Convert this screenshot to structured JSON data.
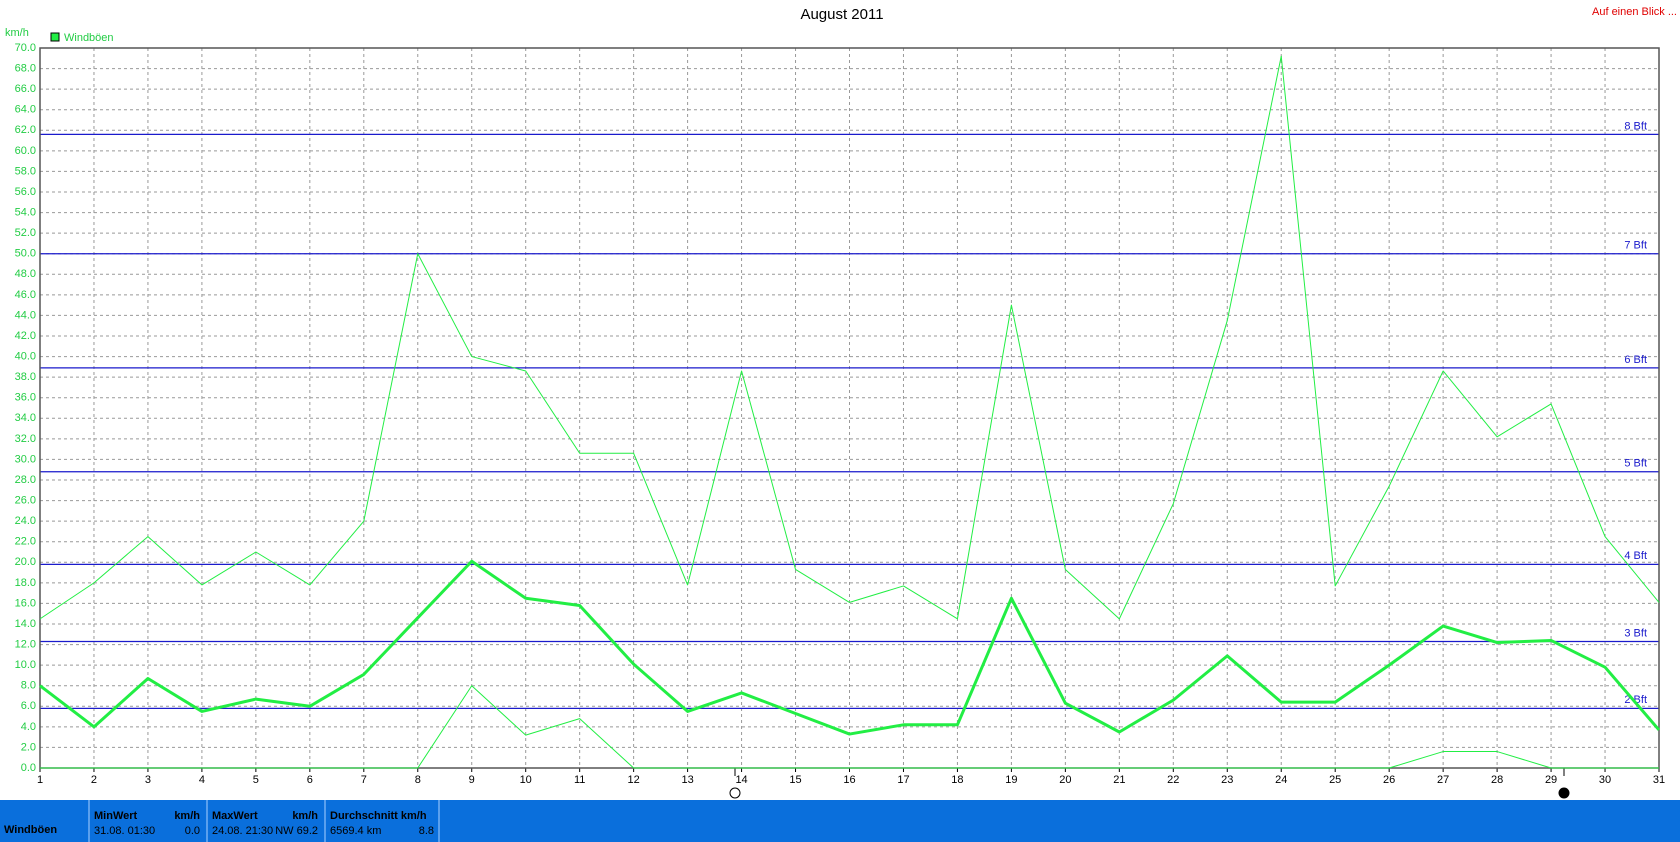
{
  "chart_data": {
    "type": "line",
    "title": "August 2011",
    "corner_link": "Auf einen Blick ...",
    "y_label": "km/h",
    "x": [
      1,
      2,
      3,
      4,
      5,
      6,
      7,
      8,
      9,
      10,
      11,
      12,
      13,
      14,
      15,
      16,
      17,
      18,
      19,
      20,
      21,
      22,
      23,
      24,
      25,
      26,
      27,
      28,
      29,
      30,
      31
    ],
    "xlim": [
      1,
      31
    ],
    "xticks": [
      1,
      2,
      3,
      4,
      5,
      6,
      7,
      8,
      9,
      10,
      11,
      12,
      13,
      14,
      15,
      16,
      17,
      18,
      19,
      20,
      21,
      22,
      23,
      24,
      25,
      26,
      27,
      28,
      29,
      30,
      31
    ],
    "ylim": [
      0,
      70
    ],
    "yticks": [
      {
        "value": 0,
        "label": "0.0"
      },
      {
        "value": 2,
        "label": "2.0"
      },
      {
        "value": 4,
        "label": "4.0"
      },
      {
        "value": 6,
        "label": "6.0"
      },
      {
        "value": 8,
        "label": "8.0"
      },
      {
        "value": 10,
        "label": "10.0"
      },
      {
        "value": 12,
        "label": "12.0"
      },
      {
        "value": 14,
        "label": "14.0"
      },
      {
        "value": 16,
        "label": "16.0"
      },
      {
        "value": 18,
        "label": "18.0"
      },
      {
        "value": 20,
        "label": "20.0"
      },
      {
        "value": 22,
        "label": "22.0"
      },
      {
        "value": 24,
        "label": "24.0"
      },
      {
        "value": 26,
        "label": "26.0"
      },
      {
        "value": 28,
        "label": "28.0"
      },
      {
        "value": 30,
        "label": "30.0"
      },
      {
        "value": 32,
        "label": "32.0"
      },
      {
        "value": 34,
        "label": "34.0"
      },
      {
        "value": 36,
        "label": "36.0"
      },
      {
        "value": 38,
        "label": "38.0"
      },
      {
        "value": 40,
        "label": "40.0"
      },
      {
        "value": 42,
        "label": "42.0"
      },
      {
        "value": 44,
        "label": "44.0"
      },
      {
        "value": 46,
        "label": "46.0"
      },
      {
        "value": 48,
        "label": "48.0"
      },
      {
        "value": 50,
        "label": "50.0"
      },
      {
        "value": 52,
        "label": "52.0"
      },
      {
        "value": 54,
        "label": "54.0"
      },
      {
        "value": 56,
        "label": "56.0"
      },
      {
        "value": 58,
        "label": "58.0"
      },
      {
        "value": 60,
        "label": "60.0"
      },
      {
        "value": 62,
        "label": "62.0"
      },
      {
        "value": 64,
        "label": "64.0"
      },
      {
        "value": 66,
        "label": "66.0"
      },
      {
        "value": 68,
        "label": "68.0"
      },
      {
        "value": 70,
        "label": "70.0"
      }
    ],
    "grid": true,
    "series": [
      {
        "name": "Windböen",
        "color": "#22ee44",
        "width": 3,
        "values": [
          8,
          4,
          8.7,
          5.5,
          6.7,
          6,
          9.1,
          14.6,
          20.1,
          16.5,
          15.8,
          10.1,
          5.5,
          7.3,
          5.3,
          3.3,
          4.2,
          4.2,
          16.5,
          6.3,
          3.5,
          6.6,
          10.9,
          6.4,
          6.4,
          10,
          13.8,
          12.2,
          12.4,
          9.8,
          3.7
        ]
      },
      {
        "color": "#22ee44",
        "width": 1,
        "values": [
          14.5,
          18,
          22.5,
          17.8,
          21,
          17.8,
          24,
          50,
          40,
          38.6,
          30.6,
          30.6,
          17.8,
          38.6,
          19.3,
          16.1,
          17.7,
          14.5,
          45,
          19.3,
          14.5,
          25.7,
          43.5,
          69.2,
          17.7,
          27.4,
          38.6,
          32.2,
          35.4,
          22.5,
          16.1
        ]
      },
      {
        "color": "#22ee44",
        "width": 1,
        "values": [
          0,
          0,
          0,
          0,
          0,
          0,
          0,
          0,
          8,
          3.2,
          4.8,
          0,
          0,
          0,
          0,
          0,
          0,
          0,
          0,
          0,
          0,
          0,
          0,
          0,
          0,
          0,
          1.6,
          1.6,
          0,
          0,
          0
        ]
      }
    ],
    "reference_lines": [
      {
        "value": 5.8,
        "label": "2 Bft"
      },
      {
        "value": 12.3,
        "label": "3 Bft"
      },
      {
        "value": 19.8,
        "label": "4 Bft"
      },
      {
        "value": 28.8,
        "label": "5 Bft"
      },
      {
        "value": 38.9,
        "label": "6 Bft"
      },
      {
        "value": 50,
        "label": "7 Bft"
      },
      {
        "value": 61.6,
        "label": "8 Bft"
      }
    ],
    "reference_color": "#1a1acc"
  },
  "summary": {
    "label": "Windböen",
    "min": {
      "heading": "MinWert",
      "unit": "km/h",
      "when": "31.08.  01:30",
      "value": "0.0"
    },
    "max": {
      "heading": "MaxWert",
      "unit": "km/h",
      "when": "24.08.  21:30",
      "dir": "NW",
      "value": "69.2"
    },
    "avg": {
      "heading": "Durchschnitt km/h",
      "when": "6569.4 km",
      "value": "8.8"
    }
  }
}
